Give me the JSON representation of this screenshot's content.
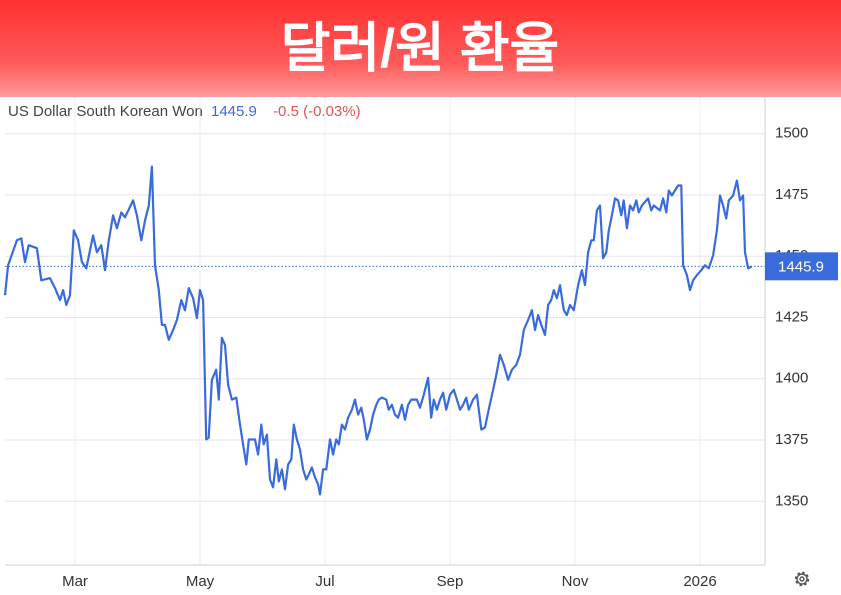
{
  "chart_data": {
    "type": "line",
    "title": "달러/원 환율",
    "change": "-0.5 (-0.03%)",
    "last_value": 1445.9,
    "change_color": "#e05555",
    "grid": true,
    "xlim": [
      1.88,
      14.04
    ],
    "xticks": [
      {
        "value": 3,
        "label": "Mar"
      },
      {
        "value": 5,
        "label": "May"
      },
      {
        "value": 7,
        "label": "Jul"
      },
      {
        "value": 9,
        "label": "Sep"
      },
      {
        "value": 11,
        "label": "Nov"
      },
      {
        "value": 13,
        "label": "2026"
      }
    ],
    "ylim": [
      1324,
      1515
    ],
    "yticks": [
      1350,
      1375,
      1400,
      1425,
      1450,
      1475,
      1500
    ],
    "series": [
      {
        "name": "US Dollar South Korean Won",
        "color": "#3a6bdb",
        "x": [
          1.88,
          1.93,
          2.07,
          2.14,
          2.2,
          2.26,
          2.39,
          2.46,
          2.6,
          2.68,
          2.76,
          2.81,
          2.86,
          2.92,
          2.98,
          3.05,
          3.11,
          3.18,
          3.24,
          3.29,
          3.35,
          3.42,
          3.48,
          3.54,
          3.61,
          3.67,
          3.74,
          3.8,
          3.93,
          3.99,
          4.06,
          4.12,
          4.18,
          4.23,
          4.28,
          4.34,
          4.39,
          4.44,
          4.5,
          4.57,
          4.63,
          4.7,
          4.76,
          4.82,
          4.89,
          4.95,
          5.0,
          5.05,
          5.1,
          5.14,
          5.19,
          5.26,
          5.3,
          5.35,
          5.4,
          5.45,
          5.51,
          5.58,
          5.64,
          5.69,
          5.74,
          5.78,
          5.88,
          5.93,
          5.98,
          6.02,
          6.07,
          6.12,
          6.17,
          6.22,
          6.26,
          6.31,
          6.36,
          6.41,
          6.46,
          6.5,
          6.55,
          6.6,
          6.65,
          6.7,
          6.74,
          6.79,
          6.84,
          6.89,
          6.92,
          6.97,
          7.02,
          7.08,
          7.13,
          7.18,
          7.22,
          7.27,
          7.32,
          7.37,
          7.43,
          7.48,
          7.53,
          7.58,
          7.62,
          7.67,
          7.72,
          7.77,
          7.82,
          7.86,
          7.91,
          7.98,
          8.02,
          8.07,
          8.12,
          8.17,
          8.23,
          8.28,
          8.33,
          8.38,
          8.47,
          8.52,
          8.58,
          8.65,
          8.7,
          8.74,
          8.79,
          8.84,
          8.89,
          8.94,
          9.0,
          9.06,
          9.11,
          9.16,
          9.21,
          9.26,
          9.3,
          9.37,
          9.43,
          9.5,
          9.56,
          9.62,
          9.69,
          9.74,
          9.8,
          9.86,
          9.93,
          9.99,
          10.06,
          10.12,
          10.18,
          10.25,
          10.31,
          10.36,
          10.41,
          10.46,
          10.52,
          10.57,
          10.62,
          10.66,
          10.71,
          10.76,
          10.82,
          10.87,
          10.92,
          10.98,
          11.05,
          11.11,
          11.16,
          11.21,
          11.26,
          11.3,
          11.35,
          11.4,
          11.45,
          11.5,
          11.54,
          11.59,
          11.64,
          11.69,
          11.74,
          11.78,
          11.83,
          11.88,
          11.93,
          11.98,
          12.02,
          12.07,
          12.17,
          12.22,
          12.26,
          12.36,
          12.41,
          12.46,
          12.5,
          12.55,
          12.65,
          12.7,
          12.73,
          12.79,
          12.84,
          12.89,
          12.95,
          13.02,
          13.08,
          13.14,
          13.21,
          13.27,
          13.32,
          13.37,
          13.42,
          13.46,
          13.53,
          13.59,
          13.64,
          13.69,
          13.72,
          13.77,
          13.83
        ],
        "values": [
          1434.1,
          1446.3,
          1456.5,
          1457.3,
          1447.6,
          1454.5,
          1453.3,
          1440.2,
          1441.1,
          1437,
          1432.1,
          1436.2,
          1430.1,
          1434.1,
          1460.6,
          1456.5,
          1447.6,
          1445.1,
          1452.4,
          1458.5,
          1451.6,
          1454.5,
          1444.3,
          1456.5,
          1466.7,
          1461.4,
          1467.9,
          1465.9,
          1472.8,
          1466.7,
          1456.5,
          1464.6,
          1470.7,
          1486.6,
          1446.3,
          1436.2,
          1422,
          1422,
          1415.9,
          1419.9,
          1424,
          1432.1,
          1428,
          1437,
          1432.9,
          1424.8,
          1436.2,
          1432.1,
          1375.2,
          1376,
          1399.6,
          1403.7,
          1391.5,
          1416.7,
          1413.8,
          1397.6,
          1391.5,
          1392.3,
          1381.3,
          1373.2,
          1365,
          1375.2,
          1375.2,
          1369.1,
          1381.3,
          1373.2,
          1377.2,
          1358.9,
          1355.7,
          1367.1,
          1358.1,
          1363,
          1354.9,
          1365,
          1367.1,
          1381.3,
          1375.2,
          1371.1,
          1363,
          1358.9,
          1361,
          1363.8,
          1359.8,
          1356.9,
          1352.8,
          1363,
          1363,
          1375.2,
          1369.1,
          1375.2,
          1373.2,
          1381.3,
          1379.3,
          1384.1,
          1387.4,
          1391.5,
          1385.4,
          1388.2,
          1383.3,
          1375.2,
          1379.3,
          1385.4,
          1389.4,
          1391.5,
          1392.3,
          1391.5,
          1387.4,
          1389.4,
          1385.4,
          1384.1,
          1389.4,
          1383.3,
          1389.4,
          1391.5,
          1391.5,
          1388.2,
          1393.5,
          1400.4,
          1384.1,
          1391.5,
          1387.4,
          1391.5,
          1394.3,
          1387.4,
          1393.5,
          1395.5,
          1391.5,
          1387.4,
          1389.4,
          1392.3,
          1387.4,
          1391.5,
          1393.5,
          1379.3,
          1380.1,
          1387.4,
          1395.5,
          1401.6,
          1409.8,
          1405.7,
          1399.6,
          1403.7,
          1405.7,
          1409.8,
          1419.9,
          1424,
          1428,
          1419.9,
          1426,
          1422,
          1417.9,
          1430.1,
          1432.1,
          1436.2,
          1432.9,
          1438.2,
          1428,
          1426,
          1430.1,
          1428,
          1438.2,
          1444.3,
          1438.2,
          1451.6,
          1456.5,
          1456.5,
          1468.7,
          1470.7,
          1449.2,
          1451.6,
          1460.6,
          1466.7,
          1473.6,
          1472.8,
          1466.7,
          1472.8,
          1461.4,
          1470.7,
          1468.7,
          1472.8,
          1467.9,
          1470.7,
          1473.6,
          1468.7,
          1470.7,
          1468.7,
          1473.6,
          1467.9,
          1476.8,
          1474.8,
          1478.9,
          1478.9,
          1446.3,
          1442.3,
          1436.2,
          1440.2,
          1442.3,
          1444.3,
          1446.3,
          1445.1,
          1450.4,
          1460.6,
          1474.8,
          1470.7,
          1465.4,
          1472.8,
          1474.8,
          1480.9,
          1472.8,
          1474.8,
          1451.6,
          1445.1,
          1445.9
        ]
      }
    ]
  }
}
